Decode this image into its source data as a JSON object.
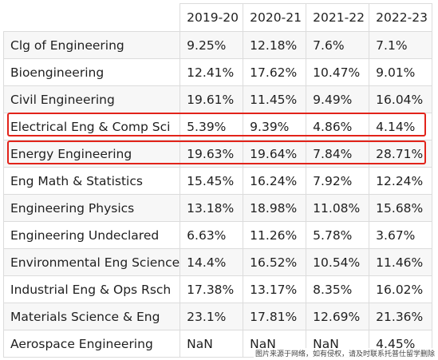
{
  "table": {
    "headers": [
      "",
      "2019-20",
      "2020-21",
      "2021-22",
      "2022-23"
    ],
    "rows": [
      {
        "name": "Clg of Engineering",
        "values": [
          "9.25%",
          "12.18%",
          "7.6%",
          "7.1%"
        ]
      },
      {
        "name": "Bioengineering",
        "values": [
          "12.41%",
          "17.62%",
          "10.47%",
          "9.01%"
        ]
      },
      {
        "name": "Civil Engineering",
        "values": [
          "19.61%",
          "11.45%",
          "9.49%",
          "16.04%"
        ]
      },
      {
        "name": "Electrical Eng & Comp Sci",
        "values": [
          "5.39%",
          "9.39%",
          "4.86%",
          "4.14%"
        ]
      },
      {
        "name": "Energy Engineering",
        "values": [
          "19.63%",
          "19.64%",
          "7.84%",
          "28.71%"
        ]
      },
      {
        "name": "Eng Math & Statistics",
        "values": [
          "15.45%",
          "16.24%",
          "7.92%",
          "12.24%"
        ]
      },
      {
        "name": "Engineering Physics",
        "values": [
          "13.18%",
          "18.98%",
          "11.08%",
          "15.68%"
        ]
      },
      {
        "name": "Engineering Undeclared",
        "values": [
          "6.63%",
          "11.26%",
          "5.78%",
          "3.67%"
        ]
      },
      {
        "name": "Environmental Eng Science",
        "values": [
          "14.4%",
          "16.52%",
          "10.54%",
          "11.46%"
        ]
      },
      {
        "name": "Industrial Eng & Ops Rsch",
        "values": [
          "17.38%",
          "13.17%",
          "8.35%",
          "16.02%"
        ]
      },
      {
        "name": "Materials Science & Eng",
        "values": [
          "23.1%",
          "17.81%",
          "12.69%",
          "21.36%"
        ]
      },
      {
        "name": "Aerospace Engineering",
        "values": [
          "NaN",
          "NaN",
          "NaN",
          "4.45%"
        ]
      }
    ]
  },
  "highlight_color": "#e2231a",
  "watermark": "图片来源于网络，如有侵权，请及时联系托普仕留学删除"
}
